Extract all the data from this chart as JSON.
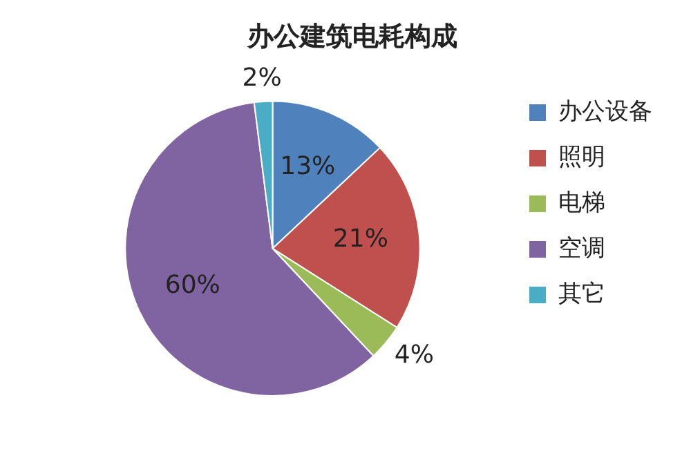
{
  "chart_data": {
    "type": "pie",
    "title": "办公建筑电耗构成",
    "categories": [
      "办公设备",
      "照明",
      "电梯",
      "空调",
      "其它"
    ],
    "values": [
      13,
      21,
      4,
      60,
      2
    ],
    "colors": [
      "#4f81bd",
      "#c0504d",
      "#9bbb59",
      "#8064a2",
      "#4bacc6"
    ],
    "value_labels": [
      "13%",
      "21%",
      "4%",
      "60%",
      "2%"
    ],
    "legend": "right"
  }
}
